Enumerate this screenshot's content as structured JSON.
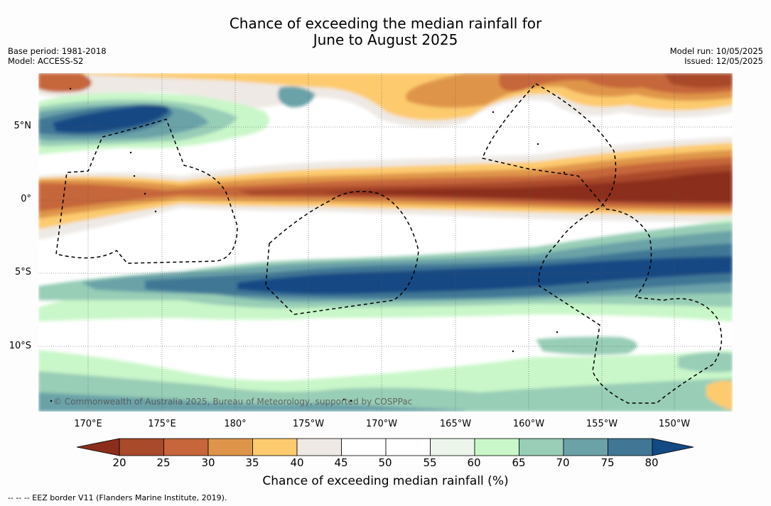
{
  "title_line1": "Chance of exceeding the median rainfall for",
  "title_line2": "June to August 2025",
  "base_period": "Base period: 1981-2018",
  "model": "Model: ACCESS-S2",
  "model_run": "Model run: 10/05/2025",
  "issued": "Issued: 12/05/2025",
  "lat_labels": [
    "5°N",
    "0°",
    "5°S",
    "10°S"
  ],
  "lon_labels": [
    "170°E",
    "175°E",
    "180°",
    "175°W",
    "170°W",
    "165°W",
    "160°W",
    "155°W",
    "150°W"
  ],
  "copyright": "© Commonwealth of Australia 2025, Bureau of Meteorology, supported by COSPPac",
  "colorbar": {
    "label": "Chance of exceeding median rainfall (%)",
    "ticks": [
      "20",
      "25",
      "30",
      "35",
      "40",
      "45",
      "50",
      "55",
      "60",
      "65",
      "70",
      "75",
      "80"
    ],
    "colors": [
      "#8c2d1c",
      "#a94a2b",
      "#c6663a",
      "#df9549",
      "#fdcb6e",
      "#eee9e4",
      "#ffffff",
      "#ffffff",
      "#ebf5ea",
      "#c9f7c9",
      "#98cdb6",
      "#6aa2a8",
      "#417795",
      "#134a84"
    ]
  },
  "eez_note": "--  --  -- EEZ border V11 (Flanders Marine Institute, 2019)."
}
